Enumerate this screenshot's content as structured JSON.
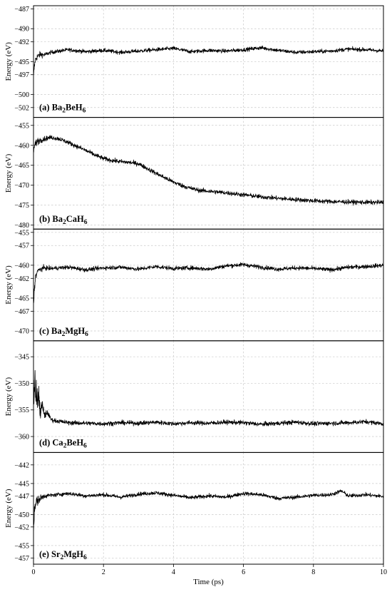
{
  "chart_data": [
    {
      "type": "line",
      "panel_label": "(a) Ba2BeH6",
      "formula": {
        "pre": "(a) Ba",
        "sub1": "2",
        "mid": "BeH",
        "sub2": "6"
      },
      "ylabel": "Energy (eV)",
      "ylim": [
        -503.5,
        -486.5
      ],
      "yticks": [
        -487,
        -490,
        -492,
        -495,
        -497,
        -500,
        -502
      ],
      "ytick_labels": [
        "-487",
        "-490",
        "-492",
        "-495",
        "-497",
        "-500",
        "-502"
      ],
      "grid": true,
      "series": [
        {
          "x": [
            0,
            0.02,
            0.05,
            0.1,
            0.2,
            0.3,
            0.5,
            1,
            1.5,
            2,
            2.5,
            3,
            3.5,
            4,
            4.5,
            5,
            5.5,
            6,
            6.5,
            7,
            7.5,
            8,
            8.5,
            9,
            9.5,
            10
          ],
          "y": [
            -497.5,
            -496.0,
            -494.8,
            -494.3,
            -493.9,
            -494.0,
            -493.6,
            -493.2,
            -493.5,
            -493.3,
            -493.6,
            -493.4,
            -493.2,
            -493.0,
            -493.5,
            -493.3,
            -493.4,
            -493.2,
            -492.9,
            -493.3,
            -493.6,
            -493.5,
            -493.4,
            -493.1,
            -493.2,
            -493.4
          ]
        }
      ]
    },
    {
      "type": "line",
      "panel_label": "(b) Ba2CaH6",
      "formula": {
        "pre": "(b) Ba",
        "sub1": "2",
        "mid": "CaH",
        "sub2": "6"
      },
      "ylabel": "Energy (eV)",
      "ylim": [
        -481,
        -453
      ],
      "yticks": [
        -455,
        -460,
        -465,
        -470,
        -475,
        -480
      ],
      "ytick_labels": [
        "-455",
        "-460",
        "-465",
        "-470",
        "-475",
        "-480"
      ],
      "grid": true,
      "series": [
        {
          "x": [
            0,
            0.05,
            0.1,
            0.25,
            0.5,
            0.75,
            1,
            1.25,
            1.5,
            1.75,
            2,
            2.25,
            2.5,
            2.75,
            3,
            3.25,
            3.5,
            3.75,
            4,
            4.25,
            4.5,
            4.75,
            5,
            5.5,
            6,
            6.5,
            7,
            7.5,
            8,
            8.5,
            9,
            9.5,
            10
          ],
          "y": [
            -461,
            -459.8,
            -459.0,
            -458.5,
            -458.0,
            -458.4,
            -459.3,
            -460.3,
            -461.3,
            -462.4,
            -463.3,
            -463.8,
            -464.1,
            -464.3,
            -464.6,
            -465.8,
            -467.0,
            -468.1,
            -469.2,
            -470.1,
            -470.8,
            -471.3,
            -471.5,
            -471.9,
            -472.4,
            -472.9,
            -473.3,
            -473.6,
            -473.9,
            -474.1,
            -474.2,
            -474.3,
            -474.3
          ]
        }
      ]
    },
    {
      "type": "line",
      "panel_label": "(c) Ba2MgH6",
      "formula": {
        "pre": "(c) Ba",
        "sub1": "2",
        "mid": "MgH",
        "sub2": "6"
      },
      "ylabel": "Energy (eV)",
      "ylim": [
        -471.5,
        -454.5
      ],
      "yticks": [
        -455,
        -457,
        -460,
        -462,
        -465,
        -467,
        -470
      ],
      "ytick_labels": [
        "-455",
        "-457",
        "-460",
        "-462",
        "-465",
        "-467",
        "-470"
      ],
      "grid": true,
      "series": [
        {
          "x": [
            0,
            0.02,
            0.05,
            0.1,
            0.2,
            0.3,
            0.5,
            1,
            1.5,
            2,
            2.5,
            3,
            3.5,
            4,
            4.5,
            5,
            5.5,
            6,
            6.5,
            7,
            7.5,
            8,
            8.5,
            9,
            9.5,
            10
          ],
          "y": [
            -466.0,
            -464.0,
            -462.0,
            -461.0,
            -460.6,
            -460.4,
            -460.5,
            -460.3,
            -460.7,
            -460.4,
            -460.3,
            -460.6,
            -460.2,
            -460.5,
            -460.4,
            -460.6,
            -460.1,
            -459.9,
            -460.3,
            -460.6,
            -460.4,
            -460.5,
            -460.7,
            -460.3,
            -460.2,
            -460.0
          ]
        }
      ]
    },
    {
      "type": "line",
      "panel_label": "(d) Ca2BeH6",
      "formula": {
        "pre": "(d) Ca",
        "sub1": "2",
        "mid": "BeH",
        "sub2": "6"
      },
      "ylabel": "Energy (eV)",
      "ylim": [
        -363,
        -342
      ],
      "yticks": [
        -345,
        -350,
        -355,
        -360
      ],
      "ytick_labels": [
        "-345",
        "-350",
        "-355",
        "-360"
      ],
      "grid": true,
      "series": [
        {
          "x": [
            0,
            0.02,
            0.04,
            0.06,
            0.08,
            0.1,
            0.15,
            0.2,
            0.25,
            0.3,
            0.4,
            0.5,
            0.6,
            0.8,
            1,
            1.5,
            2,
            2.5,
            3,
            3.5,
            4,
            4.5,
            5,
            5.5,
            6,
            6.5,
            7,
            7.5,
            8,
            8.5,
            9,
            9.5,
            10
          ],
          "y": [
            -349.5,
            -354.5,
            -348.5,
            -353.0,
            -350.5,
            -353.5,
            -352.5,
            -355.5,
            -354.0,
            -356.0,
            -355.5,
            -356.8,
            -357.0,
            -357.2,
            -357.4,
            -357.5,
            -357.6,
            -357.4,
            -357.5,
            -357.3,
            -357.6,
            -357.4,
            -357.5,
            -357.3,
            -357.4,
            -357.7,
            -357.5,
            -357.3,
            -357.6,
            -357.5,
            -357.4,
            -357.2,
            -357.6
          ]
        }
      ]
    },
    {
      "type": "line",
      "panel_label": "(e) Sr2MgH6",
      "formula": {
        "pre": "(e) Sr",
        "sub1": "2",
        "mid": "MgH",
        "sub2": "6"
      },
      "ylabel": "Energy (eV)",
      "ylim": [
        -458,
        -440
      ],
      "yticks": [
        -442,
        -445,
        -447,
        -450,
        -452,
        -455,
        -457
      ],
      "ytick_labels": [
        "-442",
        "-445",
        "-447",
        "-450",
        "-452",
        "-455",
        "-457"
      ],
      "xlabel": "Time (ps)",
      "xticks": [
        0,
        2,
        4,
        6,
        8,
        10
      ],
      "xtick_labels": [
        "0",
        "2",
        "4",
        "6",
        "8",
        "10"
      ],
      "grid": true,
      "series": [
        {
          "x": [
            0,
            0.02,
            0.05,
            0.1,
            0.2,
            0.3,
            0.5,
            1,
            1.5,
            2,
            2.5,
            3,
            3.5,
            4,
            4.5,
            5,
            5.5,
            6,
            6.5,
            7,
            7.5,
            8,
            8.5,
            8.8,
            9,
            9.5,
            10
          ],
          "y": [
            -453.0,
            -450.0,
            -448.5,
            -447.8,
            -447.4,
            -447.0,
            -446.9,
            -446.6,
            -447.0,
            -446.8,
            -447.2,
            -446.7,
            -446.5,
            -446.9,
            -447.3,
            -447.0,
            -447.2,
            -446.6,
            -446.8,
            -447.4,
            -447.2,
            -446.9,
            -446.8,
            -446.2,
            -447.0,
            -446.8,
            -447.1
          ]
        }
      ]
    }
  ],
  "xlim": [
    0,
    10
  ]
}
